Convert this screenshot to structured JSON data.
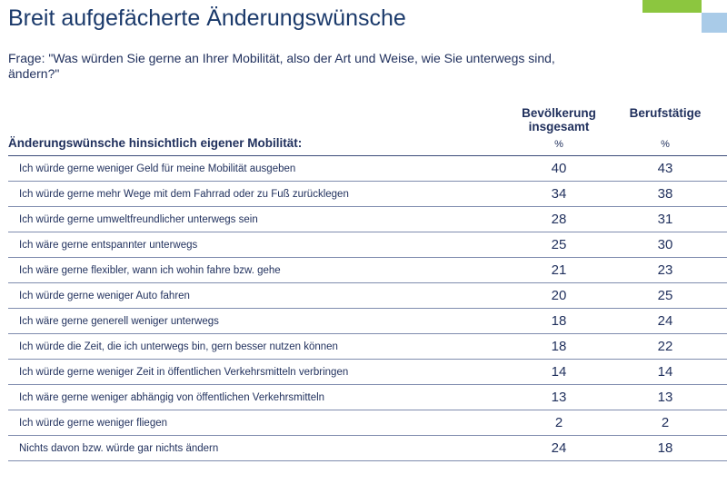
{
  "title": "Breit aufgefächerte Änderungswünsche",
  "question": "Frage: \"Was würden Sie gerne an Ihrer Mobilität, also der Art und Weise, wie Sie unterwegs sind, ändern?\"",
  "section_label": "Änderungswünsche hinsichtlich eigener Mobilität:",
  "columns": [
    {
      "header": "Bevölkerung insgesamt",
      "unit": "%"
    },
    {
      "header": "Berufstätige",
      "unit": "%"
    }
  ],
  "rows": [
    {
      "label": "Ich würde gerne weniger Geld für meine Mobilität ausgeben",
      "v1": "40",
      "v2": "43"
    },
    {
      "label": "Ich würde gerne mehr Wege mit dem Fahrrad oder zu Fuß zurücklegen",
      "v1": "34",
      "v2": "38"
    },
    {
      "label": "Ich würde gerne umweltfreundlicher unterwegs sein",
      "v1": "28",
      "v2": "31"
    },
    {
      "label": "Ich wäre gerne entspannter unterwegs",
      "v1": "25",
      "v2": "30"
    },
    {
      "label": "Ich wäre gerne flexibler, wann ich wohin fahre bzw. gehe",
      "v1": "21",
      "v2": "23"
    },
    {
      "label": "Ich würde gerne weniger Auto fahren",
      "v1": "20",
      "v2": "25"
    },
    {
      "label": "Ich wäre gerne generell weniger unterwegs",
      "v1": "18",
      "v2": "24"
    },
    {
      "label": "Ich würde die Zeit, die ich unterwegs bin, gern besser nutzen können",
      "v1": "18",
      "v2": "22"
    },
    {
      "label": "Ich würde gerne weniger Zeit in öffentlichen Verkehrsmitteln verbringen",
      "v1": "14",
      "v2": "14"
    },
    {
      "label": "Ich wäre gerne weniger abhängig von öffentlichen Verkehrsmitteln",
      "v1": "13",
      "v2": "13"
    },
    {
      "label": "Ich würde gerne weniger fliegen",
      "v1": "2",
      "v2": "2"
    },
    {
      "label": "Nichts davon bzw. würde gar nichts ändern",
      "v1": "24",
      "v2": "18"
    }
  ],
  "colors": {
    "text": "#1f2f5c",
    "title": "#1b3a6b",
    "accent_green": "#8cc63f",
    "accent_blue": "#a9cbe8"
  }
}
